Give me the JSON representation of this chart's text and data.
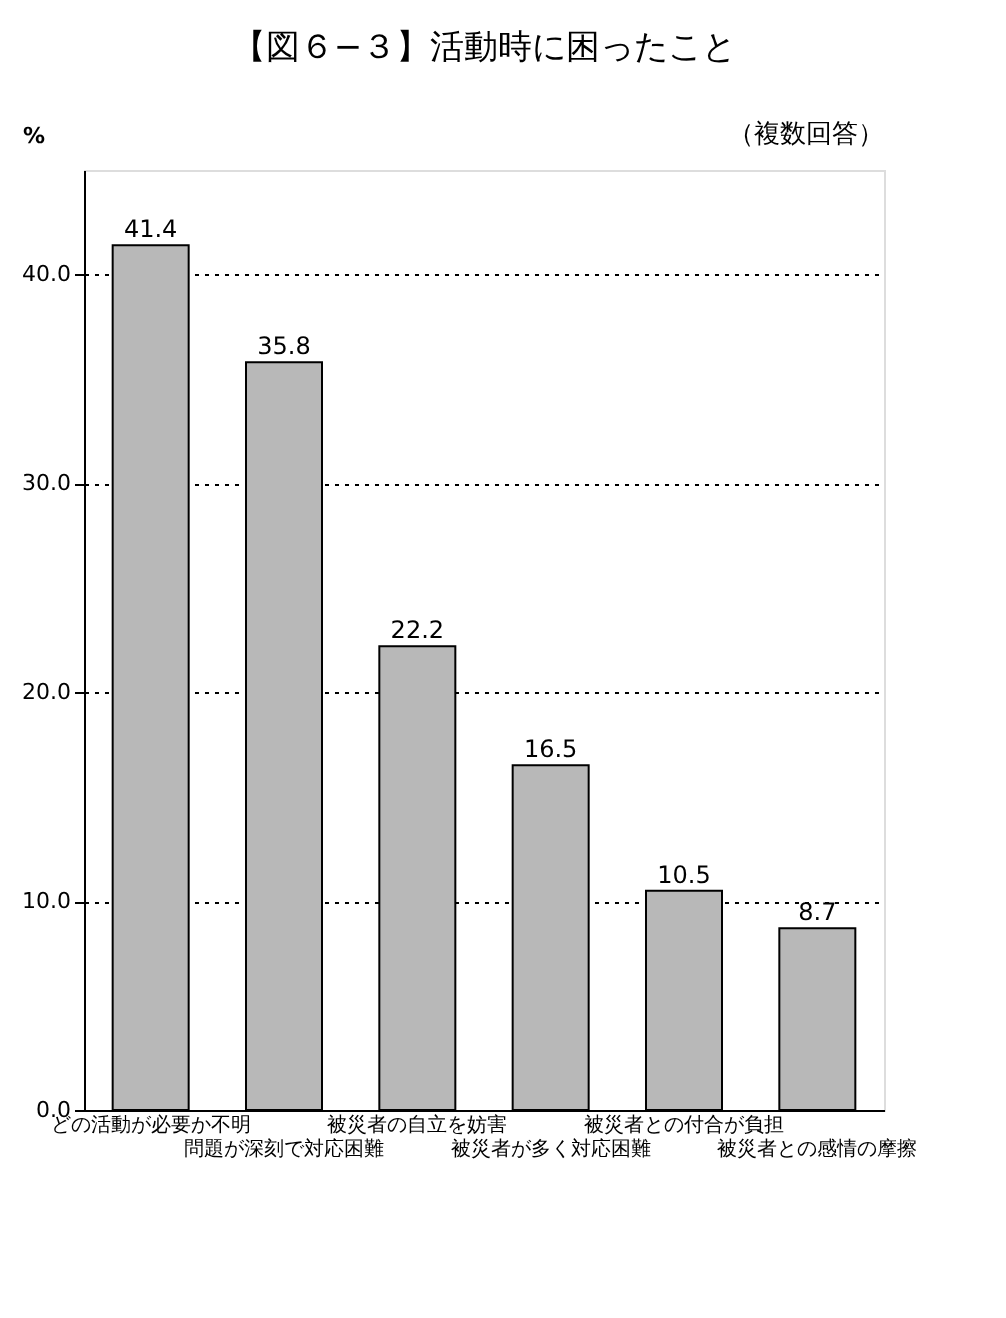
{
  "chart_data": {
    "type": "bar",
    "title": "【図６−３】活動時に困ったこと",
    "ylabel": "%",
    "annotations": [
      "（複数回答）"
    ],
    "categories": [
      "どの活動が必要か不明",
      "問題が深刻で対応困難",
      "被災者の自立を妨害",
      "被災者が多く対応困難",
      "被災者との付合が負担",
      "被災者との感情の摩擦"
    ],
    "values": [
      41.4,
      35.8,
      22.2,
      16.5,
      10.5,
      8.7
    ],
    "color": "#b8b8b8",
    "data_labels": true,
    "ylim": [
      0,
      45
    ],
    "yticks": [
      {
        "value": 0,
        "label": "0.0"
      },
      {
        "value": 10,
        "label": "10.0"
      },
      {
        "value": 20,
        "label": "20.0"
      },
      {
        "value": 30,
        "label": "30.0"
      },
      {
        "value": 40,
        "label": "40.0"
      }
    ],
    "grid": "y"
  }
}
